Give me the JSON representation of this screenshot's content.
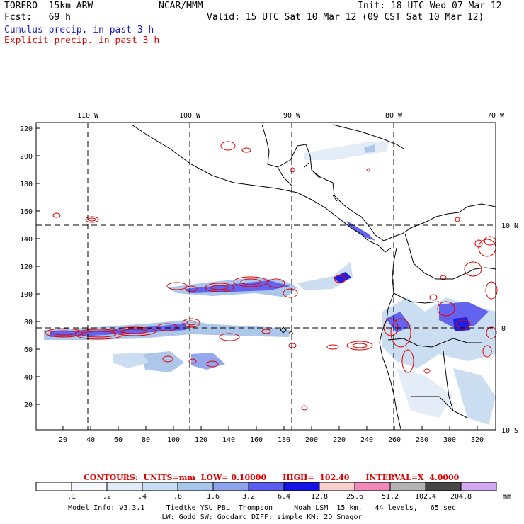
{
  "header": {
    "model": "TORERO  15km ARW",
    "org": "NCAR/MMM",
    "init": "Init: 18 UTC Wed 07 Mar 12",
    "fcst": "Fcst:   69 h",
    "valid": "Valid: 15 UTC Sat 10 Mar 12 (09 CST Sat 10 Mar 12)",
    "line_cumulus": "Cumulus precip. in past 3 h",
    "line_explicit": "Explicit precip. in past 3 h"
  },
  "colors": {
    "cumulus": "#1a1ac8",
    "explicit": "#e00000",
    "grid": "#000000",
    "coast": "#000000"
  },
  "map": {
    "lon_labels": [
      "110 W",
      "100 W",
      "90 W",
      "80 W",
      "70 W"
    ],
    "lat_labels": [
      "10 N",
      "0",
      "10 S"
    ],
    "y_ticks": [
      "220",
      "200",
      "180",
      "160",
      "140",
      "120",
      "100",
      "80",
      "60",
      "40",
      "20"
    ],
    "x_ticks": [
      "20",
      "40",
      "60",
      "80",
      "100",
      "120",
      "140",
      "160",
      "180",
      "200",
      "220",
      "240",
      "260",
      "280",
      "300",
      "320"
    ]
  },
  "contours": {
    "text": "CONTOURS:  UNITS=mm  LOW= 0.10000      HIGH=  102.40      INTERVAL=X  4.0000"
  },
  "colorbar": {
    "labels": [
      ".1",
      ".2",
      ".4",
      ".8",
      "1.6",
      "3.2",
      "6.4",
      "12.8",
      "25.6",
      "51.2",
      "102.4",
      "204.8"
    ],
    "unit": "mm",
    "colors": [
      "#ffffff",
      "#f4f8fc",
      "#e2ecf7",
      "#c9dcf1",
      "#a9c5ea",
      "#8fa3ec",
      "#5b5bee",
      "#1414e6",
      "#f7cfcf",
      "#f088b8",
      "#b4b4b4",
      "#474747",
      "#d2a8f0"
    ]
  },
  "model_info": {
    "line1": "Model Info: V3.3.1     Tiedtke YSU PBL  Thompson     Noah LSM  15 km,   44 levels,   65 sec",
    "line2": "LW: Godd SW: Goddard DIFF: simple KM: 2D Smagor"
  }
}
